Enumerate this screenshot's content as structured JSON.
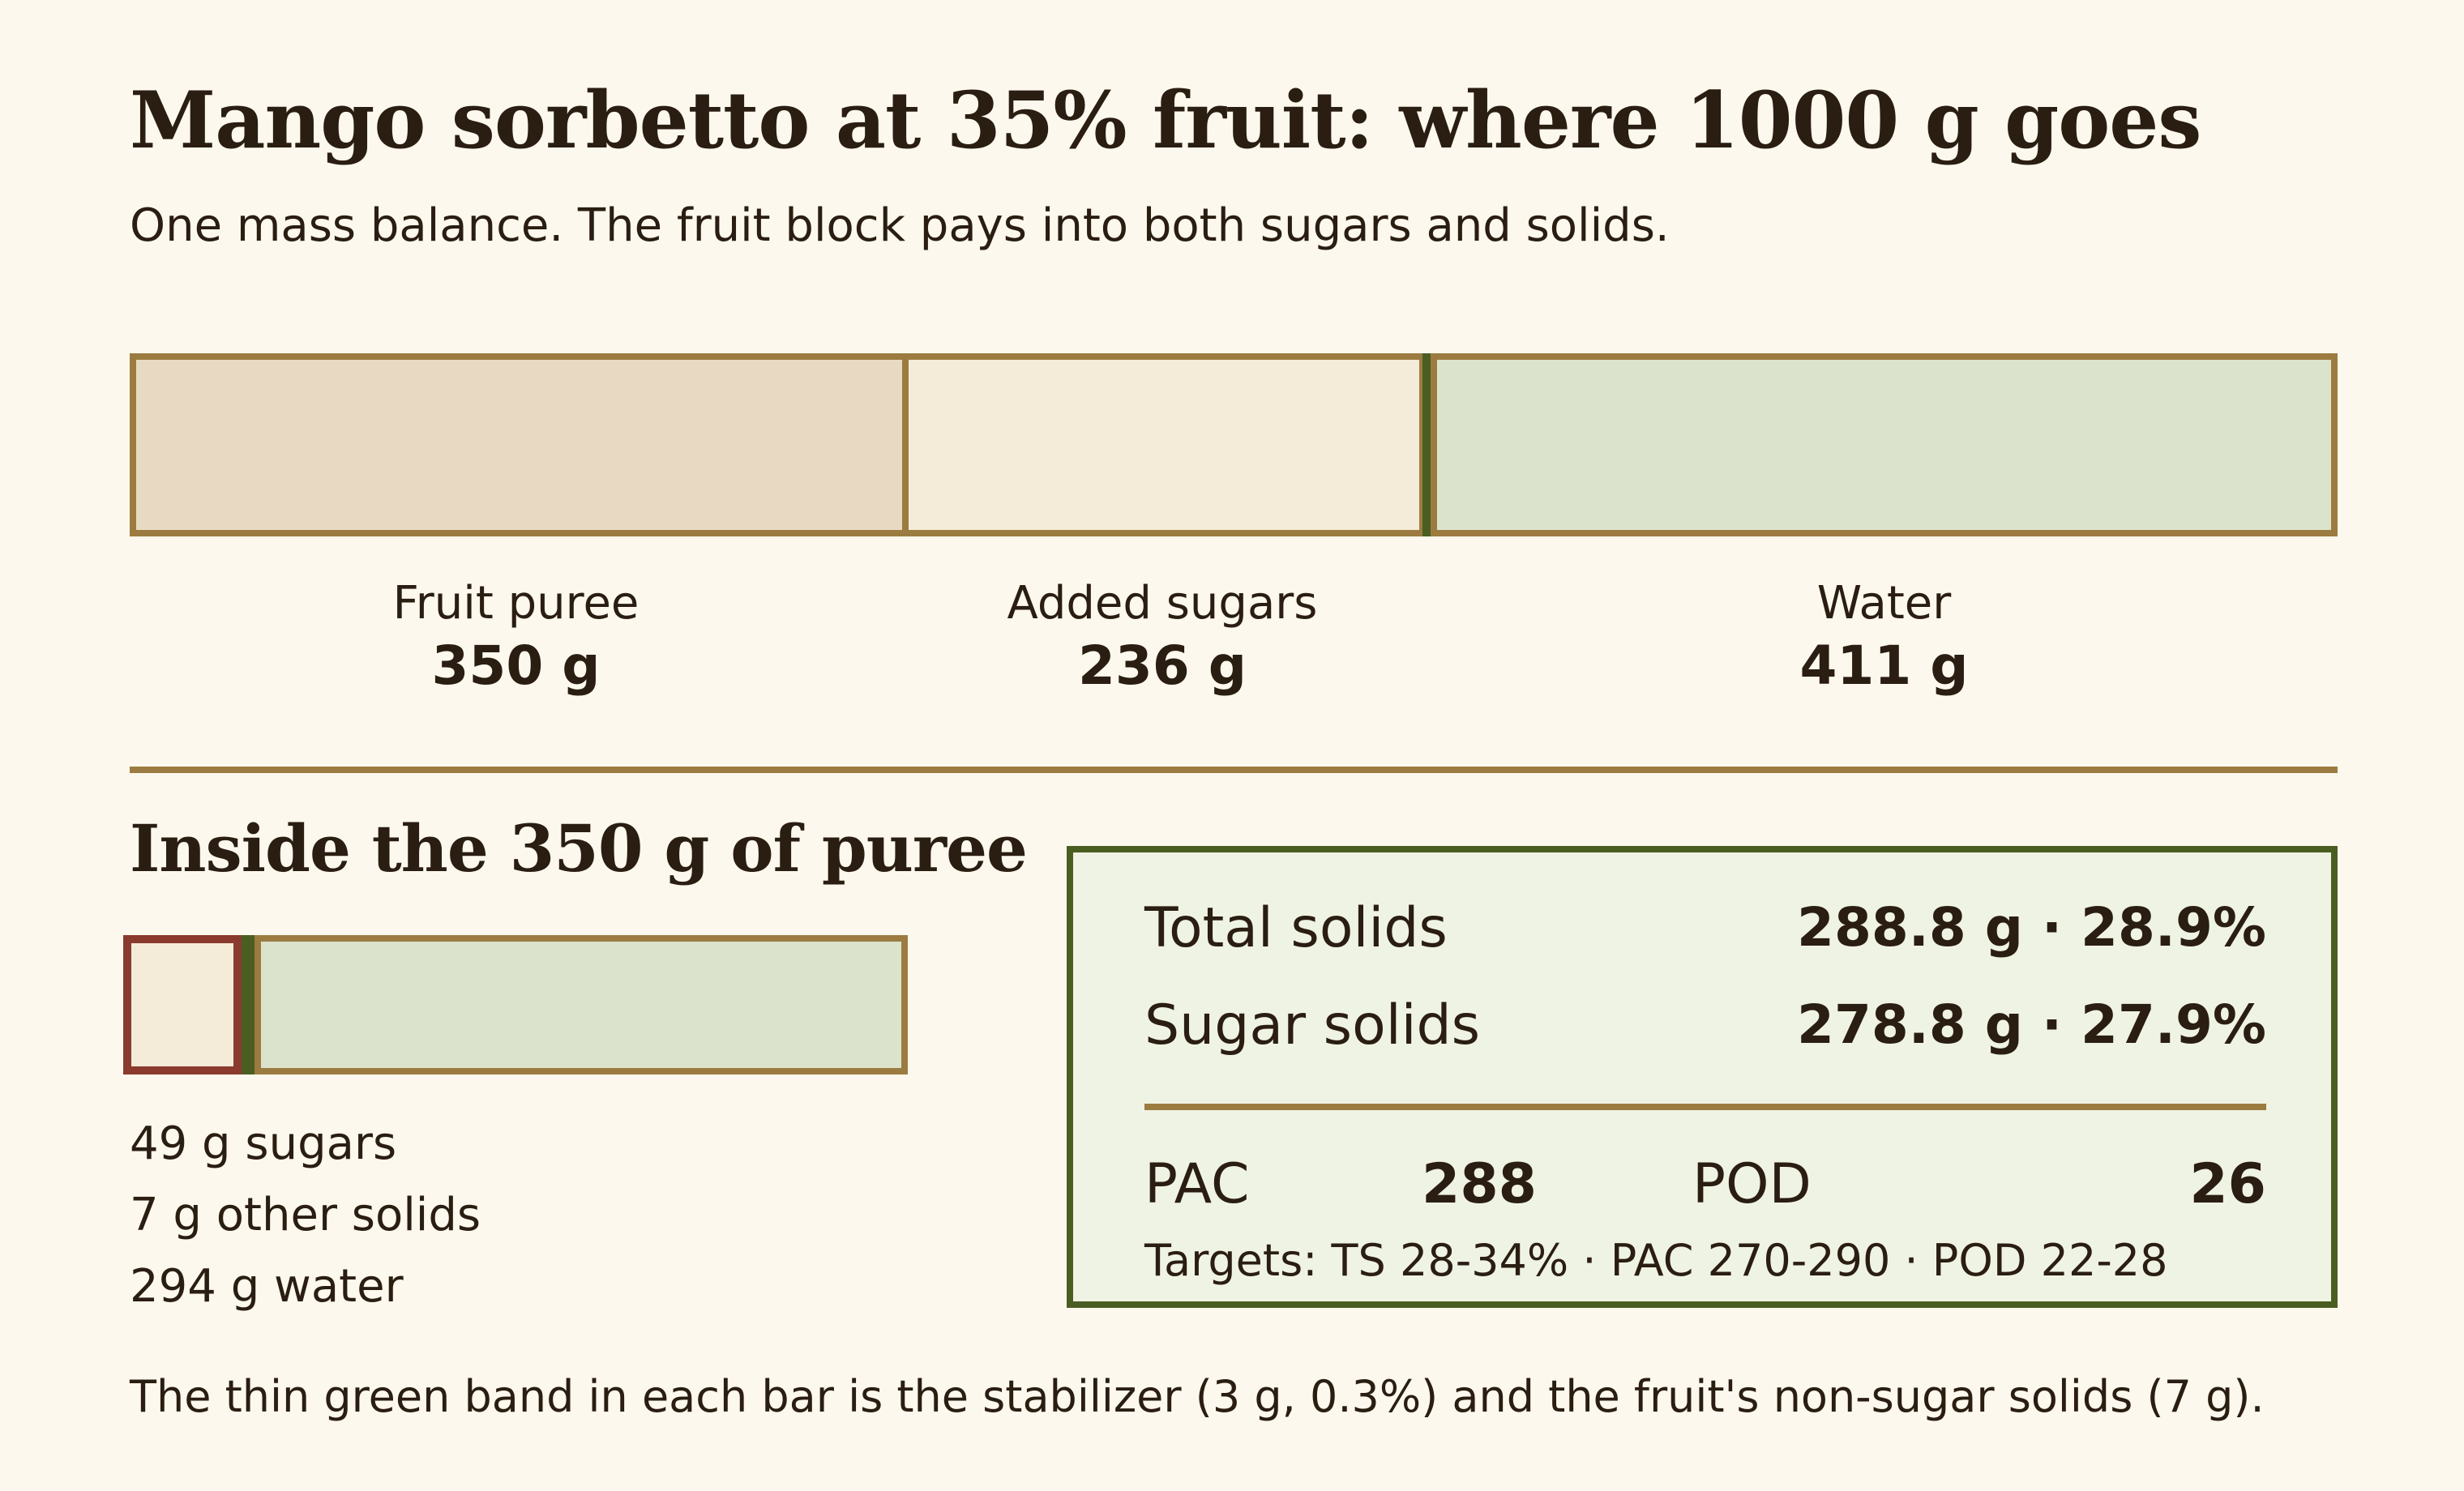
{
  "title": "Mango sorbetto at 35% fruit: where 1000 g goes",
  "subtitle": "One mass balance. The fruit block pays into both sugars and solids.",
  "colors": {
    "background": "#fcf8ed",
    "fruit": "#e8dac2",
    "sugars": "#f4ecd8",
    "water": "#dce3cd",
    "border": "#9c7b40",
    "stabilizer": "#4a5e22",
    "puree_sugar_outline": "#8a3b2e"
  },
  "chart_data": [
    {
      "type": "bar",
      "orientation": "horizontal-stacked",
      "total": 1000,
      "unit": "g",
      "series": [
        {
          "name": "Fruit puree",
          "value": 350,
          "label": "350 g"
        },
        {
          "name": "Stabilizer",
          "value": 3,
          "label": ""
        },
        {
          "name": "Added sugars",
          "value": 236,
          "label": "236 g"
        },
        {
          "name": "Water",
          "value": 411,
          "label": "411 g"
        }
      ]
    },
    {
      "type": "bar",
      "orientation": "horizontal-stacked",
      "total": 350,
      "unit": "g",
      "series": [
        {
          "name": "sugars",
          "value": 49,
          "label": "49 g sugars"
        },
        {
          "name": "other solids",
          "value": 7,
          "label": "7 g other solids"
        },
        {
          "name": "water",
          "value": 294,
          "label": "294 g water"
        }
      ]
    }
  ],
  "puree_section": {
    "heading": "Inside the 350 g of puree",
    "items": [
      "49 g sugars",
      "7 g other solids",
      "294 g water"
    ]
  },
  "stats": {
    "total_solids_label": "Total solids",
    "total_solids_value": "288.8 g · 28.9%",
    "sugar_solids_label": "Sugar solids",
    "sugar_solids_value": "278.8 g · 27.9%",
    "pac_label": "PAC",
    "pac_value": "288",
    "pod_label": "POD",
    "pod_value": "26",
    "targets": "Targets: TS 28-34% · PAC 270-290 · POD 22-28"
  },
  "footnote": "The thin green band in each bar is the stabilizer (3 g, 0.3%) and the fruit's non-sugar solids (7 g)."
}
